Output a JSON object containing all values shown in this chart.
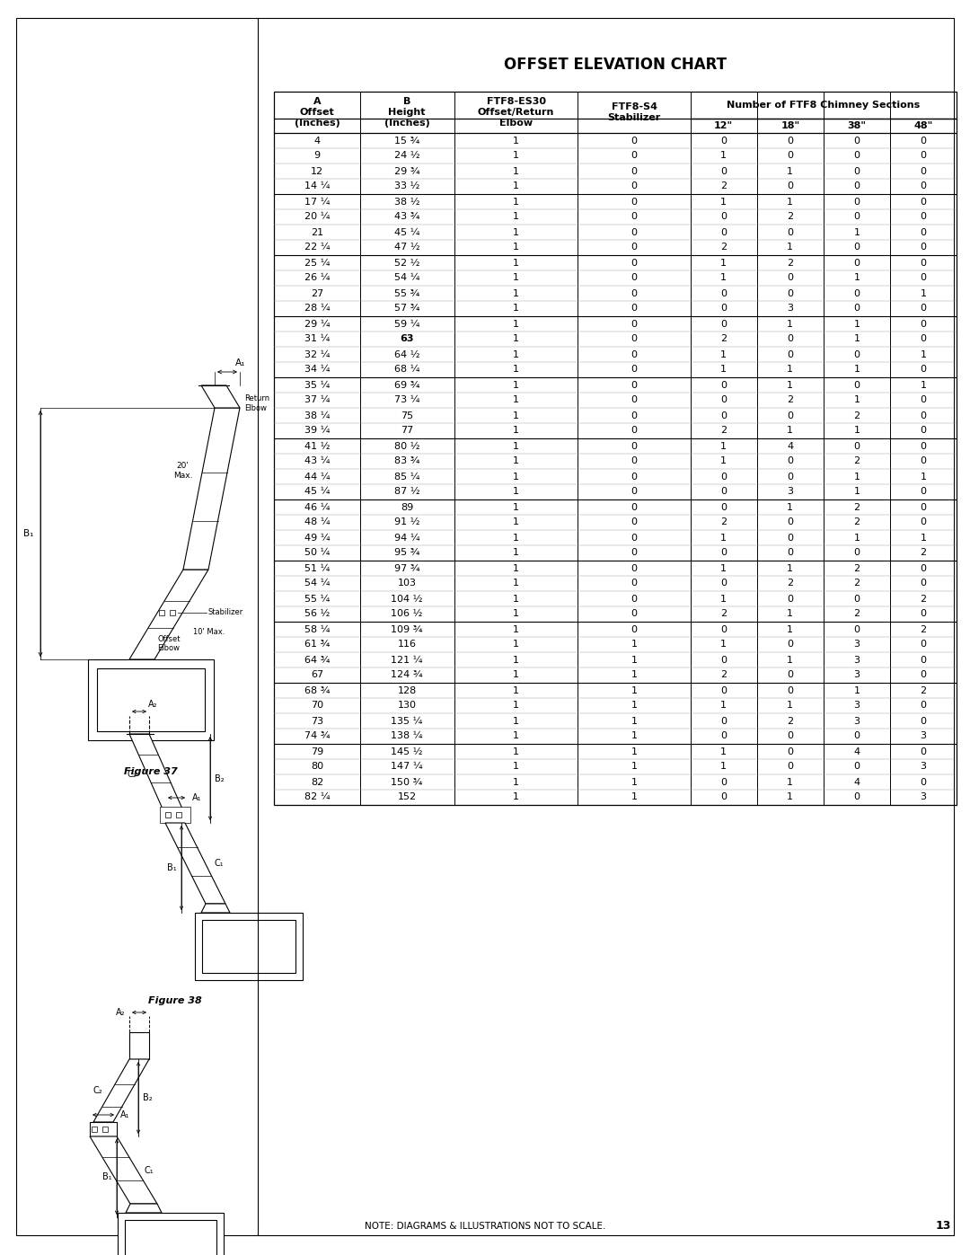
{
  "title": "OFFSET ELEVATION CHART",
  "page_number": "13",
  "footer_note": "NOTE: DIAGRAMS & ILLUSTRATIONS NOT TO SCALE.",
  "col_headers_span": "Number of FTF8 Chimney Sections",
  "col_headers_sub": [
    "12\"",
    "18\"",
    "38\"",
    "48\""
  ],
  "rows": [
    [
      "4",
      "15 ¾",
      "1",
      "0",
      "0",
      "0",
      "0",
      "0"
    ],
    [
      "9",
      "24 ½",
      "1",
      "0",
      "1",
      "0",
      "0",
      "0"
    ],
    [
      "12",
      "29 ¾",
      "1",
      "0",
      "0",
      "1",
      "0",
      "0"
    ],
    [
      "14 ¼",
      "33 ½",
      "1",
      "0",
      "2",
      "0",
      "0",
      "0"
    ],
    [
      "17 ¼",
      "38 ½",
      "1",
      "0",
      "1",
      "1",
      "0",
      "0"
    ],
    [
      "20 ¼",
      "43 ¾",
      "1",
      "0",
      "0",
      "2",
      "0",
      "0"
    ],
    [
      "21",
      "45 ¼",
      "1",
      "0",
      "0",
      "0",
      "1",
      "0"
    ],
    [
      "22 ¼",
      "47 ½",
      "1",
      "0",
      "2",
      "1",
      "0",
      "0"
    ],
    [
      "25 ¼",
      "52 ½",
      "1",
      "0",
      "1",
      "2",
      "0",
      "0"
    ],
    [
      "26 ¼",
      "54 ¼",
      "1",
      "0",
      "1",
      "0",
      "1",
      "0"
    ],
    [
      "27",
      "55 ¾",
      "1",
      "0",
      "0",
      "0",
      "0",
      "1"
    ],
    [
      "28 ¼",
      "57 ¾",
      "1",
      "0",
      "0",
      "3",
      "0",
      "0"
    ],
    [
      "29 ¼",
      "59 ¼",
      "1",
      "0",
      "0",
      "1",
      "1",
      "0"
    ],
    [
      "31 ¼",
      "63",
      "1",
      "0",
      "2",
      "0",
      "1",
      "0"
    ],
    [
      "32 ¼",
      "64 ½",
      "1",
      "0",
      "1",
      "0",
      "0",
      "1"
    ],
    [
      "34 ¼",
      "68 ¼",
      "1",
      "0",
      "1",
      "1",
      "1",
      "0"
    ],
    [
      "35 ¼",
      "69 ¾",
      "1",
      "0",
      "0",
      "1",
      "0",
      "1"
    ],
    [
      "37 ¼",
      "73 ¼",
      "1",
      "0",
      "0",
      "2",
      "1",
      "0"
    ],
    [
      "38 ¼",
      "75",
      "1",
      "0",
      "0",
      "0",
      "2",
      "0"
    ],
    [
      "39 ¼",
      "77",
      "1",
      "0",
      "2",
      "1",
      "1",
      "0"
    ],
    [
      "41 ½",
      "80 ½",
      "1",
      "0",
      "1",
      "4",
      "0",
      "0"
    ],
    [
      "43 ¼",
      "83 ¾",
      "1",
      "0",
      "1",
      "0",
      "2",
      "0"
    ],
    [
      "44 ¼",
      "85 ¼",
      "1",
      "0",
      "0",
      "0",
      "1",
      "1"
    ],
    [
      "45 ¼",
      "87 ½",
      "1",
      "0",
      "0",
      "3",
      "1",
      "0"
    ],
    [
      "46 ¼",
      "89",
      "1",
      "0",
      "0",
      "1",
      "2",
      "0"
    ],
    [
      "48 ¼",
      "91 ½",
      "1",
      "0",
      "2",
      "0",
      "2",
      "0"
    ],
    [
      "49 ¼",
      "94 ¼",
      "1",
      "0",
      "1",
      "0",
      "1",
      "1"
    ],
    [
      "50 ¼",
      "95 ¾",
      "1",
      "0",
      "0",
      "0",
      "0",
      "2"
    ],
    [
      "51 ¼",
      "97 ¾",
      "1",
      "0",
      "1",
      "1",
      "2",
      "0"
    ],
    [
      "54 ¼",
      "103",
      "1",
      "0",
      "0",
      "2",
      "2",
      "0"
    ],
    [
      "55 ¼",
      "104 ½",
      "1",
      "0",
      "1",
      "0",
      "0",
      "2"
    ],
    [
      "56 ½",
      "106 ½",
      "1",
      "0",
      "2",
      "1",
      "2",
      "0"
    ],
    [
      "58 ¼",
      "109 ¾",
      "1",
      "0",
      "0",
      "1",
      "0",
      "2"
    ],
    [
      "61 ¾",
      "116",
      "1",
      "1",
      "1",
      "0",
      "3",
      "0"
    ],
    [
      "64 ¾",
      "121 ¼",
      "1",
      "1",
      "0",
      "1",
      "3",
      "0"
    ],
    [
      "67",
      "124 ¾",
      "1",
      "1",
      "2",
      "0",
      "3",
      "0"
    ],
    [
      "68 ¾",
      "128",
      "1",
      "1",
      "0",
      "0",
      "1",
      "2"
    ],
    [
      "70",
      "130",
      "1",
      "1",
      "1",
      "1",
      "3",
      "0"
    ],
    [
      "73",
      "135 ¼",
      "1",
      "1",
      "0",
      "2",
      "3",
      "0"
    ],
    [
      "74 ¾",
      "138 ¼",
      "1",
      "1",
      "0",
      "0",
      "0",
      "3"
    ],
    [
      "79",
      "145 ½",
      "1",
      "1",
      "1",
      "0",
      "4",
      "0"
    ],
    [
      "80",
      "147 ¼",
      "1",
      "1",
      "1",
      "0",
      "0",
      "3"
    ],
    [
      "82",
      "150 ¾",
      "1",
      "1",
      "0",
      "1",
      "4",
      "0"
    ],
    [
      "82 ¼",
      "152",
      "1",
      "1",
      "0",
      "1",
      "0",
      "3"
    ]
  ],
  "group_separators_before": [
    4,
    8,
    12,
    16,
    20,
    24,
    28,
    32,
    36,
    40
  ],
  "bold_b_rows": [
    13
  ],
  "background_color": "#ffffff",
  "text_color": "#000000",
  "font_size": 8.0,
  "header_font_size": 8.0,
  "title_font_size": 12.0
}
